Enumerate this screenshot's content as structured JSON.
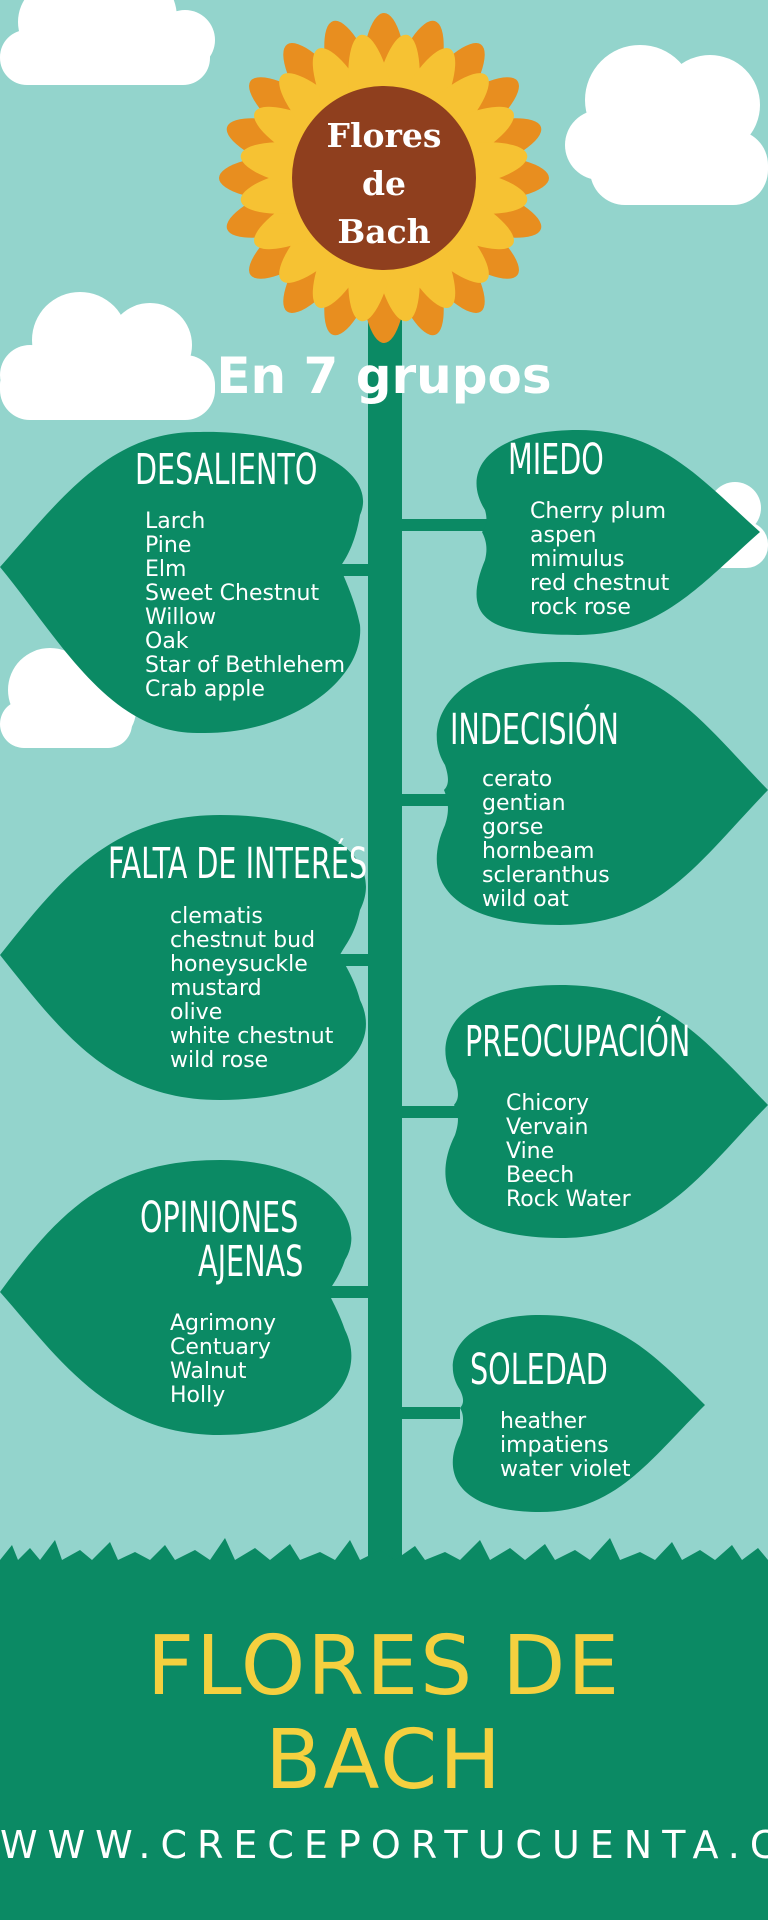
{
  "flower": {
    "line1": "Flores",
    "line2": "de",
    "line3": "Bach"
  },
  "subtitle": "En 7 grupos",
  "groups": {
    "desaliento": {
      "title": "DESALIENTO",
      "items": [
        "Larch",
        "Pine",
        "Elm",
        "Sweet Chestnut",
        "Willow",
        "Oak",
        "Star of Bethlehem",
        "Crab apple"
      ]
    },
    "miedo": {
      "title": "MIEDO",
      "items": [
        "Cherry plum",
        "aspen",
        "mimulus",
        "red chestnut",
        "rock rose"
      ]
    },
    "indecision": {
      "title": "INDECISIÓN",
      "items": [
        "cerato",
        "gentian",
        "gorse",
        "hornbeam",
        "scleranthus",
        "wild oat"
      ]
    },
    "falta_de_interes": {
      "title": "FALTA DE INTERÉS",
      "items": [
        "clematis",
        "chestnut bud",
        "honeysuckle",
        "mustard",
        "olive",
        "white chestnut",
        "wild rose"
      ]
    },
    "preocupacion": {
      "title": "PREOCUPACIÓN",
      "items": [
        "Chicory",
        "Vervain",
        "Vine",
        "Beech",
        "Rock Water"
      ]
    },
    "opiniones_ajenas": {
      "title_line1": "OPINIONES",
      "title_line2": "AJENAS",
      "items": [
        "Agrimony",
        "Centuary",
        "Walnut",
        "Holly"
      ]
    },
    "soledad": {
      "title": "SOLEDAD",
      "items": [
        "heather",
        "impatiens",
        "water violet"
      ]
    }
  },
  "footer": {
    "title_line1": "FLORES DE",
    "title_line2": "BACH",
    "url": "WWW.CRECEPORTUCUENTA.COM"
  },
  "colors": {
    "sky": "#93d4cc",
    "leaf": "#0b8a64",
    "stem": "#0b8a64",
    "ground": "#0b8a64",
    "petal_outer": "#e88e1f",
    "petal_inner": "#f6c233",
    "flower_center": "#8f3f1e",
    "footer_title": "#f4d03f",
    "cloud": "#ffffff"
  }
}
